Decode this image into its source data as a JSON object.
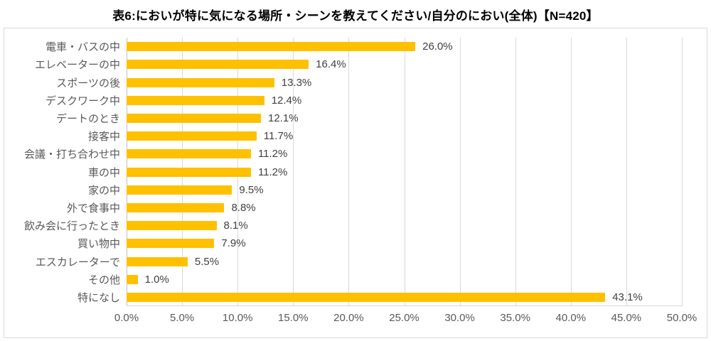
{
  "chart_data": {
    "type": "bar",
    "orientation": "horizontal",
    "title": "表6:においが特に気になる場所・シーンを教えてください/自分のにおい(全体)【N=420】",
    "sample_size": "N=420",
    "categories": [
      "電車・バスの中",
      "エレベーターの中",
      "スポーツの後",
      "デスクワーク中",
      "デートのとき",
      "接客中",
      "会議・打ち合わせ中",
      "車の中",
      "家の中",
      "外で食事中",
      "飲み会に行ったとき",
      "買い物中",
      "エスカレーターで",
      "その他",
      "特になし"
    ],
    "values": [
      26.0,
      16.4,
      13.3,
      12.4,
      12.1,
      11.7,
      11.2,
      11.2,
      9.5,
      8.8,
      8.1,
      7.9,
      5.5,
      1.0,
      43.1
    ],
    "value_labels": [
      "26.0%",
      "16.4%",
      "13.3%",
      "12.4%",
      "12.1%",
      "11.7%",
      "11.2%",
      "11.2%",
      "9.5%",
      "8.8%",
      "8.1%",
      "7.9%",
      "5.5%",
      "1.0%",
      "43.1%"
    ],
    "xlabel": "",
    "ylabel": "",
    "xlim": [
      0,
      50
    ],
    "x_tick_labels": [
      "0.0%",
      "5.0%",
      "10.0%",
      "15.0%",
      "20.0%",
      "25.0%",
      "30.0%",
      "35.0%",
      "40.0%",
      "45.0%",
      "50.0%"
    ],
    "grid": true,
    "legend": false,
    "colors": {
      "bar": "#FFC000",
      "gridline": "#D9D9D9",
      "axis_line": "#BFBFBF",
      "plot_border": "#D9D9D9",
      "category_label": "#595959",
      "value_label": "#404040",
      "tick_label": "#595959",
      "title": "#000000",
      "background": "#FFFFFF"
    }
  }
}
